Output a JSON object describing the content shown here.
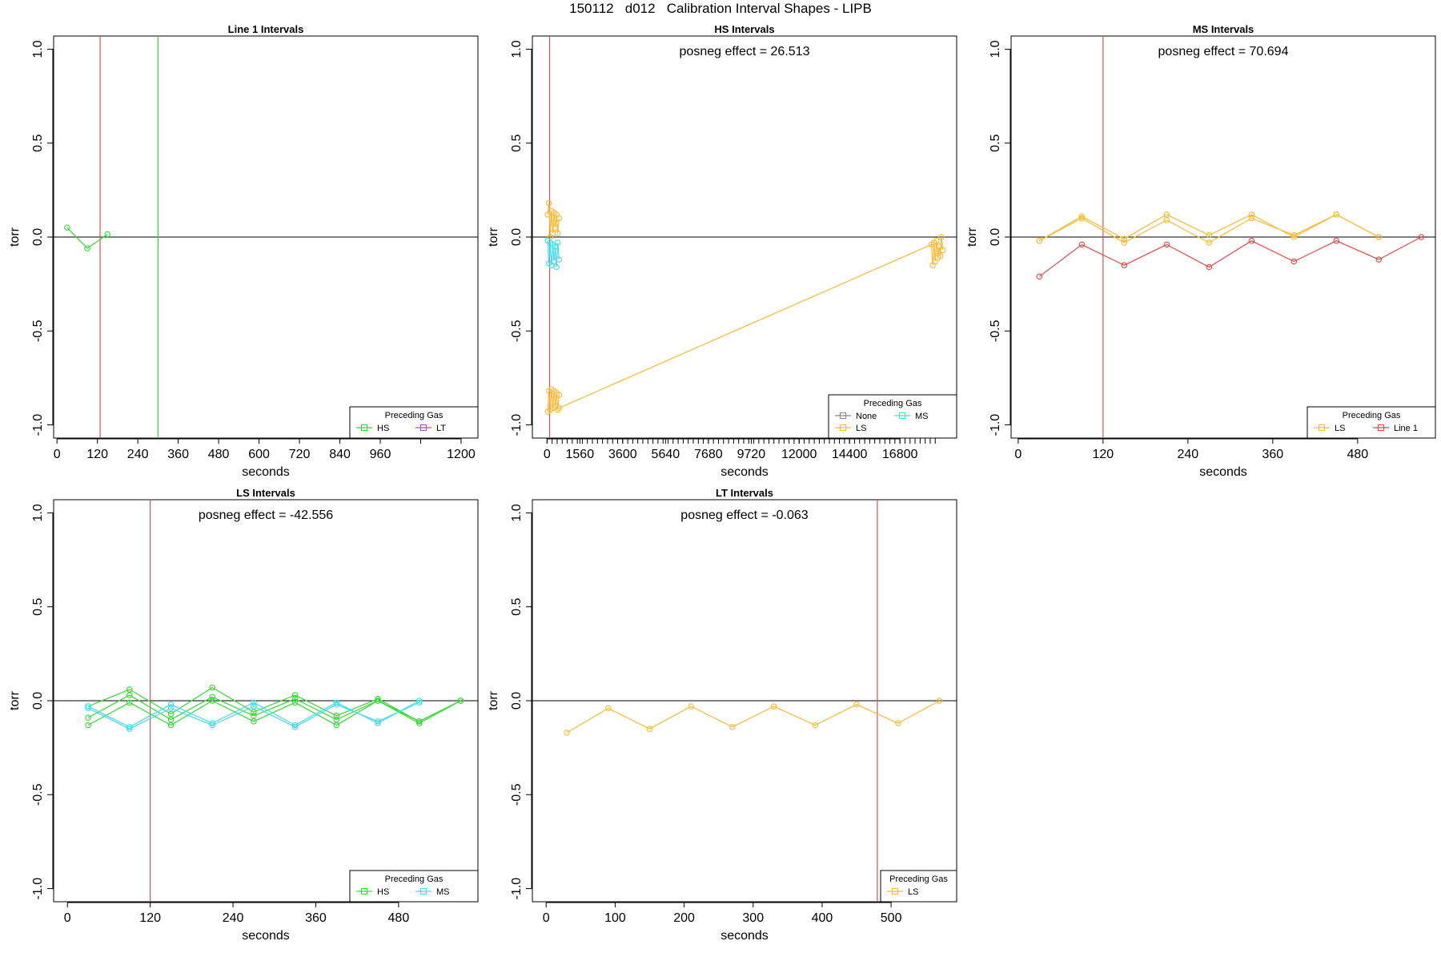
{
  "figure": {
    "title": "150112   d012   Calibration Interval Shapes - LIPB"
  },
  "chart_data": [
    {
      "type": "line",
      "title": "Line 1 Intervals",
      "xlabel": "seconds",
      "ylabel": "torr",
      "xlim": [
        -10,
        1250
      ],
      "ylim": [
        -1.07,
        1.07
      ],
      "xticks": [
        0,
        120,
        240,
        360,
        480,
        600,
        720,
        840,
        960,
        1200
      ],
      "xtick_labels": [
        "0",
        "120",
        "240",
        "360",
        "480",
        "600",
        "720",
        "840",
        "960",
        "1200"
      ],
      "extra_ticks": [
        1080
      ],
      "yticks": [
        -1.0,
        -0.5,
        0.0,
        0.5,
        1.0
      ],
      "ytick_labels": [
        "-1.0",
        "-0.5",
        "0.0",
        "0.5",
        "1.0"
      ],
      "hline": 0,
      "vlines": [
        {
          "x": 128,
          "color": "#d9534f"
        },
        {
          "x": 300,
          "color": "#33dd33"
        }
      ],
      "annotation": "",
      "series": [
        {
          "color": "#33dd33",
          "x": [
            30,
            90,
            150
          ],
          "y": [
            0.05,
            -0.06,
            0.015
          ]
        }
      ],
      "legend": {
        "title": "Preceding Gas",
        "position": "bottom-right",
        "entries": [
          {
            "label": "HS",
            "color": "#33dd33"
          },
          {
            "label": "LT",
            "color": "#bb44dd"
          }
        ]
      }
    },
    {
      "type": "line",
      "title": "HS Intervals",
      "xlabel": "seconds",
      "ylabel": "torr",
      "xlim": [
        -700,
        19500
      ],
      "ylim": [
        -1.07,
        1.07
      ],
      "xticks": [
        0,
        1560,
        3600,
        5640,
        7680,
        9720,
        12000,
        14400,
        16800
      ],
      "xtick_labels": [
        "0",
        "1560",
        "3600",
        "5640",
        "7680",
        "9720",
        "12000",
        "14400",
        "16800"
      ],
      "minor_ticks": {
        "start": 0,
        "end": 18600,
        "step": 240
      },
      "yticks": [
        -1.0,
        -0.5,
        0.0,
        0.5,
        1.0
      ],
      "ytick_labels": [
        "-1.0",
        "-0.5",
        "0.0",
        "0.5",
        "1.0"
      ],
      "hline": 0,
      "vlines": [
        {
          "x": 120,
          "color": "#d9534f"
        }
      ],
      "annotation": "posneg effect = 26.513",
      "series": [
        {
          "color": "#ffb833",
          "x": [
            30,
            90,
            150,
            210,
            270,
            330,
            390,
            450,
            510,
            570
          ],
          "y": [
            0.12,
            0.18,
            0.0,
            0.14,
            0.02,
            0.13,
            0.05,
            0.12,
            0.02,
            0.1
          ]
        },
        {
          "color": "#ffb833",
          "x": [
            30,
            90,
            150,
            210,
            270,
            330,
            390,
            450,
            510,
            570
          ],
          "y": [
            -0.93,
            -0.82,
            -0.92,
            -0.81,
            -0.91,
            -0.82,
            -0.9,
            -0.83,
            -0.92,
            -0.84
          ]
        },
        {
          "color": "#44ddee",
          "x": [
            30,
            90,
            150,
            210,
            270,
            330,
            390,
            450,
            510,
            570
          ],
          "y": [
            -0.02,
            -0.14,
            -0.03,
            -0.15,
            -0.04,
            -0.13,
            -0.05,
            -0.16,
            -0.03,
            -0.12
          ]
        },
        {
          "color": "#ffb833",
          "x": [
            570,
            18300,
            18360,
            18420,
            18480,
            18540,
            18600,
            18660,
            18720,
            18780,
            18840
          ],
          "y": [
            -0.91,
            -0.04,
            -0.15,
            -0.03,
            -0.13,
            -0.02,
            -0.11,
            -0.05,
            -0.1,
            0.0,
            -0.07
          ]
        }
      ],
      "legend": {
        "title": "Preceding Gas",
        "position": "bottom-right",
        "entries": [
          {
            "label": "None",
            "color": "#888888"
          },
          {
            "label": "MS",
            "color": "#44ddee"
          },
          {
            "label": "LS",
            "color": "#ffb833"
          }
        ]
      }
    },
    {
      "type": "line",
      "title": "MS Intervals",
      "xlabel": "seconds",
      "ylabel": "torr",
      "xlim": [
        -10,
        590
      ],
      "ylim": [
        -1.07,
        1.07
      ],
      "xticks": [
        0,
        120,
        240,
        360,
        480
      ],
      "xtick_labels": [
        "0",
        "120",
        "240",
        "360",
        "480"
      ],
      "yticks": [
        -1.0,
        -0.5,
        0.0,
        0.5,
        1.0
      ],
      "ytick_labels": [
        "-1.0",
        "-0.5",
        "0.0",
        "0.5",
        "1.0"
      ],
      "hline": 0,
      "vlines": [
        {
          "x": 120,
          "color": "#d9534f"
        }
      ],
      "annotation": "posneg effect = 70.694",
      "series": [
        {
          "color": "#ffb833",
          "x": [
            30,
            90,
            150,
            210,
            270,
            330,
            390,
            450,
            510
          ],
          "y": [
            -0.02,
            0.11,
            -0.01,
            0.12,
            0.01,
            0.12,
            0.0,
            0.12,
            0.0
          ]
        },
        {
          "color": "#ffb833",
          "x": [
            30,
            90,
            150,
            210,
            270,
            330,
            390,
            450,
            510
          ],
          "y": [
            -0.02,
            0.1,
            -0.03,
            0.09,
            -0.03,
            0.1,
            0.01,
            0.12,
            0.0
          ]
        },
        {
          "color": "#ee4444",
          "x": [
            30,
            90,
            150,
            210,
            270,
            330,
            390,
            450,
            510,
            570
          ],
          "y": [
            -0.21,
            -0.04,
            -0.15,
            -0.04,
            -0.16,
            -0.02,
            -0.13,
            -0.02,
            -0.12,
            0.0
          ]
        }
      ],
      "legend": {
        "title": "Preceding Gas",
        "position": "bottom-right",
        "entries": [
          {
            "label": "LS",
            "color": "#ffb833"
          },
          {
            "label": "Line 1",
            "color": "#ee4444"
          }
        ]
      }
    },
    {
      "type": "line",
      "title": "LS Intervals",
      "xlabel": "seconds",
      "ylabel": "torr",
      "xlim": [
        -20,
        595
      ],
      "ylim": [
        -1.07,
        1.07
      ],
      "xticks": [
        0,
        120,
        240,
        360,
        480
      ],
      "xtick_labels": [
        "0",
        "120",
        "240",
        "360",
        "480"
      ],
      "yticks": [
        -1.0,
        -0.5,
        0.0,
        0.5,
        1.0
      ],
      "ytick_labels": [
        "-1.0",
        "-0.5",
        "0.0",
        "0.5",
        "1.0"
      ],
      "hline": 0,
      "vlines": [
        {
          "x": 120,
          "color": "#d9534f"
        }
      ],
      "annotation": "posneg effect = -42.556",
      "series": [
        {
          "color": "#33dd33",
          "x": [
            30,
            90,
            150,
            210,
            270,
            330,
            390,
            450,
            510,
            570
          ],
          "y": [
            -0.03,
            0.06,
            -0.07,
            0.07,
            -0.06,
            0.03,
            -0.08,
            0.01,
            -0.11,
            0.0
          ]
        },
        {
          "color": "#33dd33",
          "x": [
            30,
            90,
            150,
            210,
            270,
            330,
            390,
            450,
            510,
            570
          ],
          "y": [
            -0.09,
            0.03,
            -0.1,
            0.02,
            -0.08,
            0.01,
            -0.1,
            0.0,
            -0.12,
            0.0
          ]
        },
        {
          "color": "#33dd33",
          "x": [
            30,
            90,
            150,
            210,
            270,
            330,
            390,
            450,
            510,
            570
          ],
          "y": [
            -0.13,
            -0.01,
            -0.13,
            0.0,
            -0.11,
            -0.01,
            -0.13,
            0.0,
            -0.11,
            0.0
          ]
        },
        {
          "color": "#44ddee",
          "x": [
            30,
            90,
            150,
            210,
            270,
            330,
            390,
            450,
            510
          ],
          "y": [
            -0.03,
            -0.14,
            -0.02,
            -0.12,
            -0.01,
            -0.13,
            -0.01,
            -0.12,
            0.0
          ]
        },
        {
          "color": "#44ddee",
          "x": [
            30,
            90,
            150,
            210,
            270,
            330,
            390,
            450,
            510
          ],
          "y": [
            -0.04,
            -0.15,
            -0.04,
            -0.13,
            -0.03,
            -0.14,
            -0.02,
            -0.11,
            -0.01
          ]
        }
      ],
      "legend": {
        "title": "Preceding Gas",
        "position": "bottom-right",
        "entries": [
          {
            "label": "HS",
            "color": "#33dd33"
          },
          {
            "label": "MS",
            "color": "#44ddee"
          }
        ]
      }
    },
    {
      "type": "line",
      "title": "LT Intervals",
      "xlabel": "seconds",
      "ylabel": "torr",
      "xlim": [
        -20,
        595
      ],
      "ylim": [
        -1.07,
        1.07
      ],
      "xticks": [
        0,
        100,
        200,
        300,
        400,
        500
      ],
      "xtick_labels": [
        "0",
        "100",
        "200",
        "300",
        "400",
        "500"
      ],
      "yticks": [
        -1.0,
        -0.5,
        0.0,
        0.5,
        1.0
      ],
      "ytick_labels": [
        "-1.0",
        "-0.5",
        "0.0",
        "0.5",
        "1.0"
      ],
      "hline": 0,
      "vlines": [
        {
          "x": 480,
          "color": "#d9534f"
        }
      ],
      "annotation": "posneg effect = -0.063",
      "series": [
        {
          "color": "#ffb833",
          "x": [
            30,
            90,
            150,
            210,
            270,
            330,
            390,
            450,
            510,
            570
          ],
          "y": [
            -0.17,
            -0.04,
            -0.15,
            -0.03,
            -0.14,
            -0.03,
            -0.13,
            -0.02,
            -0.12,
            0.0
          ]
        }
      ],
      "legend": {
        "title": "Preceding Gas",
        "position": "bottom-right",
        "entries": [
          {
            "label": "LS",
            "color": "#ffb833"
          }
        ]
      }
    }
  ]
}
